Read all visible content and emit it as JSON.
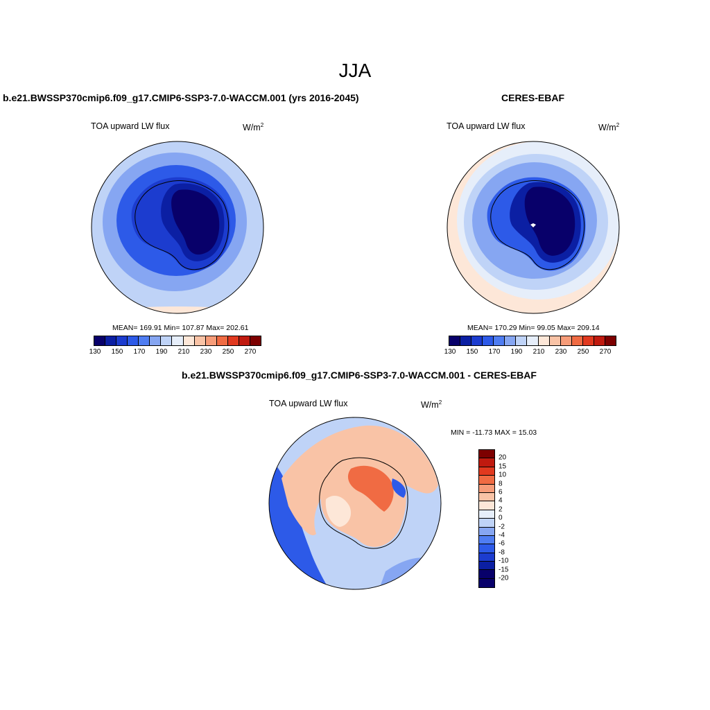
{
  "main_title": "JJA",
  "panels": [
    {
      "title": "b.e21.BWSSP370cmip6.f09_g17.CMIP6-SSP3-7.0-WACCM.001 (yrs 2016-2045)",
      "variable": "TOA upward LW flux",
      "units": "W/m",
      "units_sup": "2",
      "stats": "MEAN= 169.91  Min= 107.87  Max= 202.61"
    },
    {
      "title": "CERES-EBAF",
      "variable": "TOA upward LW flux",
      "units": "W/m",
      "units_sup": "2",
      "stats": "MEAN= 170.29  Min=  99.05  Max= 209.14"
    },
    {
      "title": "b.e21.BWSSP370cmip6.f09_g17.CMIP6-SSP3-7.0-WACCM.001 - CERES-EBAF",
      "variable": "TOA upward LW flux",
      "units": "W/m",
      "units_sup": "2",
      "stats": "MIN = -11.73 MAX =  15.03"
    }
  ],
  "colorbar_main": {
    "colors": [
      "#08006a",
      "#0b1fa3",
      "#1c3ccf",
      "#2d5ae8",
      "#4f7df2",
      "#86a6f2",
      "#bfd3f7",
      "#e6eefa",
      "#fde7d8",
      "#f9c3a6",
      "#f69c79",
      "#f06b43",
      "#e1391f",
      "#c01a0f",
      "#7d0000"
    ],
    "tick_labels": [
      "130",
      "150",
      "170",
      "190",
      "210",
      "230",
      "250",
      "270"
    ]
  },
  "colorbar_diff": {
    "colors": [
      "#7d0000",
      "#c01a0f",
      "#e1391f",
      "#f06b43",
      "#f69c79",
      "#f9c3a6",
      "#fde7d8",
      "#e6eefa",
      "#bfd3f7",
      "#86a6f2",
      "#4f7df2",
      "#2d5ae8",
      "#1c3ccf",
      "#0b1fa3",
      "#08006a",
      "#08006a"
    ],
    "tick_labels": [
      "20",
      "15",
      "10",
      "8",
      "6",
      "4",
      "2",
      "0",
      "-2",
      "-4",
      "-6",
      "-8",
      "-10",
      "-15",
      "-20"
    ]
  },
  "map_colors": {
    "ocean_far": "#e6eefa",
    "ocean_mid": "#bfd3f7",
    "ocean_near": "#86a6f2",
    "coast": "#2d5ae8",
    "ice_edge": "#1c3ccf",
    "ice_inner": "#0b1fa3",
    "plateau": "#08006a",
    "warm_rim": "#fde7d8",
    "diff_warm": "#f9c3a6",
    "diff_hot": "#f06b43",
    "diff_pale": "#fde7d8",
    "diff_cool": "#86a6f2",
    "diff_cold": "#2d5ae8"
  }
}
